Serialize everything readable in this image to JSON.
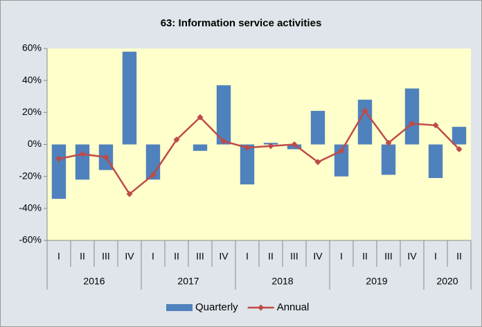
{
  "chart_data": {
    "type": "bar_line",
    "title": "63: Information service activities",
    "groups": [
      {
        "name": "2016",
        "categories": [
          "I",
          "II",
          "III",
          "IV"
        ]
      },
      {
        "name": "2017",
        "categories": [
          "I",
          "II",
          "III",
          "IV"
        ]
      },
      {
        "name": "2018",
        "categories": [
          "I",
          "II",
          "III",
          "IV"
        ]
      },
      {
        "name": "2019",
        "categories": [
          "I",
          "II",
          "III",
          "IV"
        ]
      },
      {
        "name": "2020",
        "categories": [
          "I",
          "II"
        ]
      }
    ],
    "series": [
      {
        "name": "Quarterly",
        "kind": "bar",
        "color": "#4f81bd",
        "values": [
          -34,
          -22,
          -16,
          58,
          -22,
          0,
          -4,
          37,
          -25,
          1,
          -3,
          21,
          -20,
          28,
          -19,
          35,
          -21,
          11
        ]
      },
      {
        "name": "Annual",
        "kind": "line",
        "color": "#be4b48",
        "values": [
          -9,
          -6,
          -8,
          -31,
          -19,
          3,
          17,
          2,
          -2,
          -1,
          0,
          -11,
          -4,
          21,
          1,
          13,
          12,
          -3
        ]
      }
    ],
    "ylim": [
      -60,
      60
    ],
    "yticks": [
      {
        "value": -60,
        "label": "-60%"
      },
      {
        "value": -40,
        "label": "-40%"
      },
      {
        "value": -20,
        "label": "-20%"
      },
      {
        "value": 0,
        "label": "0%"
      },
      {
        "value": 20,
        "label": "20%"
      },
      {
        "value": 40,
        "label": "40%"
      },
      {
        "value": 60,
        "label": "60%"
      }
    ],
    "legend": "bottom"
  }
}
